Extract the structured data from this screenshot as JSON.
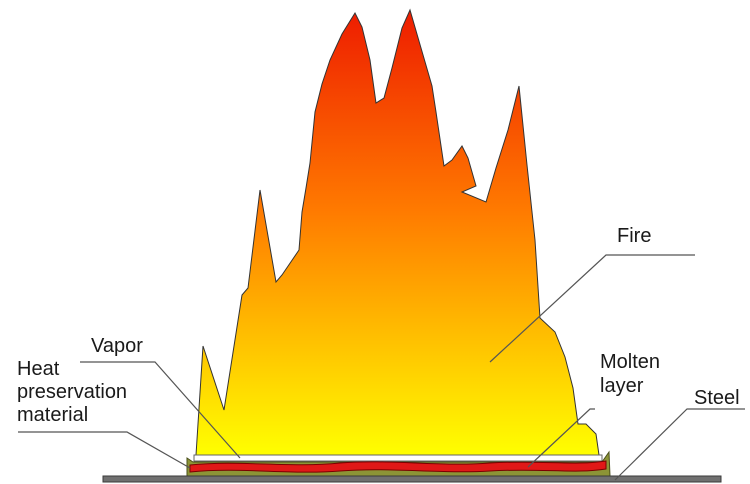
{
  "labels": {
    "fire": "Fire",
    "vapor": "Vapor",
    "heat_line1": "Heat",
    "heat_line2": "preservation",
    "heat_line3": "material",
    "molten_line1": "Molten",
    "molten_line2": "layer",
    "steel": "Steel"
  },
  "colors": {
    "fire_top": "#ee1c00",
    "fire_bottom": "#ffff00",
    "molten": "#e01818",
    "heat_material": "#8c9436",
    "steel": "#707070",
    "vapor": "#ffffff"
  }
}
